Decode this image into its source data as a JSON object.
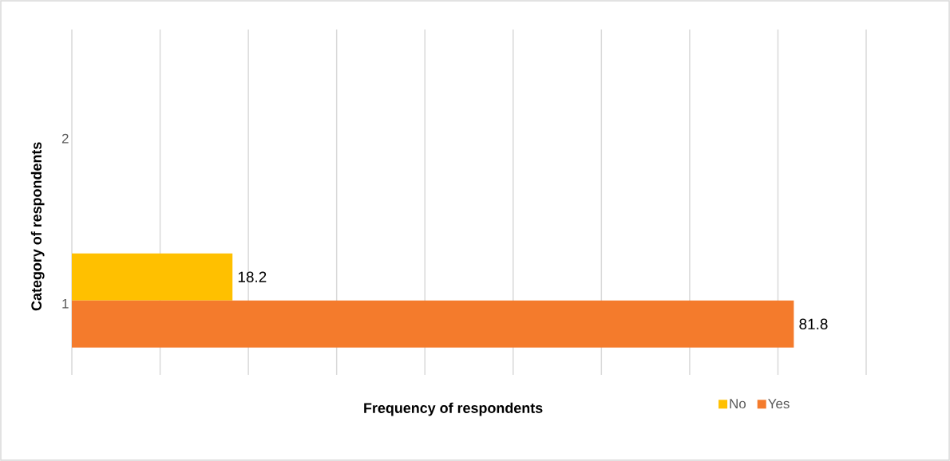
{
  "chart_data": {
    "type": "bar",
    "orientation": "horizontal",
    "xlabel": "Frequency of respondents",
    "ylabel": "Category of respondents",
    "categories": [
      "2",
      "1"
    ],
    "series": [
      {
        "name": "No",
        "color": "#ffc000",
        "values": [
          null,
          18.2
        ]
      },
      {
        "name": "Yes",
        "color": "#f47b2c",
        "values": [
          null,
          81.8
        ]
      }
    ],
    "xlim": [
      0,
      90
    ],
    "xticks": [
      {
        "value": 0,
        "label": null
      },
      {
        "value": 10,
        "label": null
      },
      {
        "value": 20,
        "label": null
      },
      {
        "value": 30,
        "label": null
      },
      {
        "value": 40,
        "label": null
      },
      {
        "value": 50,
        "label": null
      },
      {
        "value": 60,
        "label": null
      },
      {
        "value": 70,
        "label": null
      },
      {
        "value": 80,
        "label": null
      },
      {
        "value": 90,
        "label": null
      }
    ],
    "grid": "x",
    "legend": "bottom right",
    "tick_labels": "y",
    "data_labels": true
  }
}
